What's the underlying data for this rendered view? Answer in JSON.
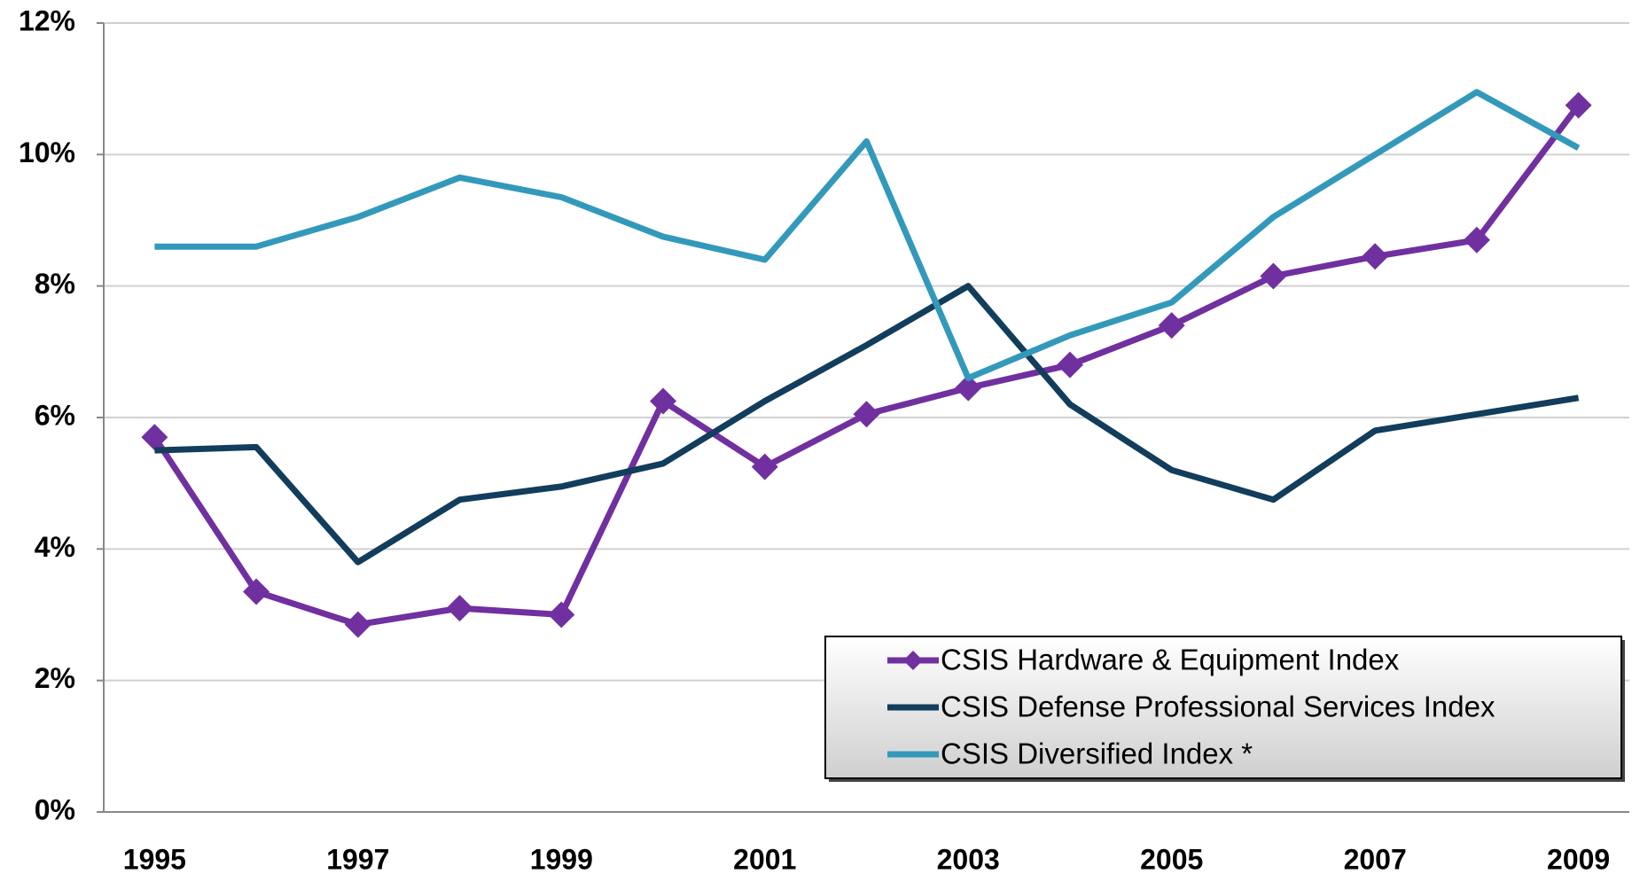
{
  "chart_data": {
    "type": "line",
    "x": [
      1995,
      1996,
      1997,
      1998,
      1999,
      2000,
      2001,
      2002,
      2003,
      2004,
      2005,
      2006,
      2007,
      2008,
      2009
    ],
    "xlim": [
      1994.5,
      2009.5
    ],
    "xticks": [
      1995,
      1997,
      1999,
      2001,
      2003,
      2005,
      2007,
      2009
    ],
    "ylim": [
      0,
      12
    ],
    "yticks": [
      {
        "value": 0,
        "label": "0%"
      },
      {
        "value": 2,
        "label": "2%"
      },
      {
        "value": 4,
        "label": "4%"
      },
      {
        "value": 6,
        "label": "6%"
      },
      {
        "value": 8,
        "label": "8%"
      },
      {
        "value": 10,
        "label": "10%"
      },
      {
        "value": 12,
        "label": "12%"
      }
    ],
    "grid": true,
    "legend": "lower right",
    "series": [
      {
        "name": "CSIS Hardware & Equipment Index",
        "color": "#7030a0",
        "marker": "diamond",
        "values": [
          5.7,
          3.35,
          2.85,
          3.1,
          3.0,
          6.25,
          5.25,
          6.05,
          6.45,
          6.8,
          7.4,
          8.15,
          8.45,
          8.7,
          10.75
        ]
      },
      {
        "name": "CSIS Defense Professional Services Index",
        "color": "#123d5c",
        "values": [
          5.5,
          5.55,
          3.8,
          4.75,
          4.95,
          5.3,
          6.25,
          7.1,
          8.0,
          6.2,
          5.2,
          4.75,
          5.8,
          6.05,
          6.3
        ]
      },
      {
        "name": "CSIS Diversified Index *",
        "color": "#3399bb",
        "values": [
          8.6,
          8.6,
          9.05,
          9.65,
          9.35,
          8.75,
          8.4,
          10.2,
          6.6,
          7.25,
          7.75,
          9.05,
          10.0,
          10.95,
          10.1
        ]
      }
    ]
  }
}
